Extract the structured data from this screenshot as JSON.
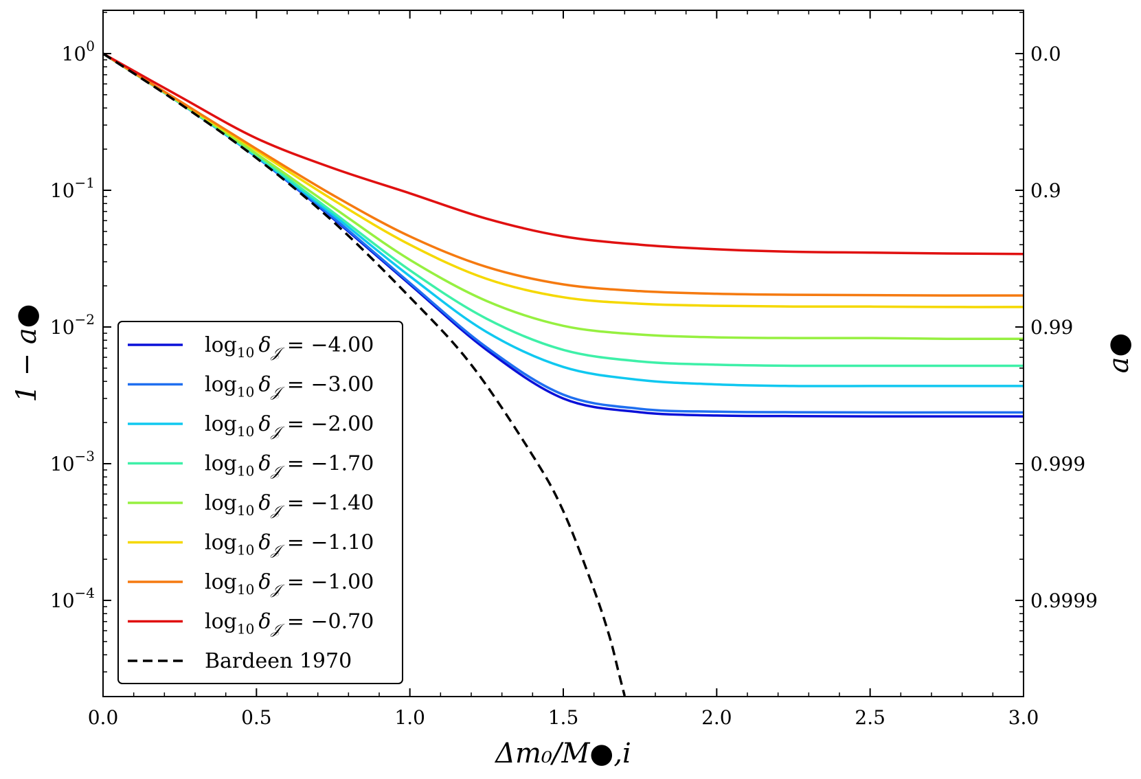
{
  "chart_data": {
    "type": "line",
    "title": "",
    "xlabel": "Δm₀/M●,i",
    "ylabel": "1 − a●",
    "y2label": "a●",
    "xlim": [
      0.0,
      3.0
    ],
    "ylim": [
      2e-05,
      2.0
    ],
    "yscale": "log",
    "grid": false,
    "legend_position": "lower-left",
    "x_ticks": [
      "0.0",
      "0.5",
      "1.0",
      "1.5",
      "2.0",
      "2.5",
      "3.0"
    ],
    "x_tick_values": [
      0.0,
      0.5,
      1.0,
      1.5,
      2.0,
      2.5,
      3.0
    ],
    "y_ticks": [
      {
        "value": 1,
        "base": "10",
        "exp": "0"
      },
      {
        "value": 0.1,
        "base": "10",
        "exp": "−1"
      },
      {
        "value": 0.01,
        "base": "10",
        "exp": "−2"
      },
      {
        "value": 0.001,
        "base": "10",
        "exp": "−3"
      },
      {
        "value": 0.0001,
        "base": "10",
        "exp": "−4"
      }
    ],
    "y2_ticks": [
      {
        "value": 1,
        "label": "0.0"
      },
      {
        "value": 0.1,
        "label": "0.9"
      },
      {
        "value": 0.01,
        "label": "0.99"
      },
      {
        "value": 0.001,
        "label": "0.999"
      },
      {
        "value": 0.0001,
        "label": "0.9999"
      }
    ],
    "x": [
      0.0,
      0.25,
      0.5,
      0.75,
      1.0,
      1.25,
      1.5,
      1.75,
      2.0,
      2.25,
      2.5,
      2.75,
      3.0
    ],
    "series": [
      {
        "name": "log₁₀ δ𝒥 = −4.00",
        "prefix": "log",
        "sub": "10",
        "delta": "δ",
        "deltasub": "𝒥",
        "rhs": " = −4.00",
        "color": "#0a10d8",
        "values": [
          1.0,
          0.435,
          0.175,
          0.062,
          0.0205,
          0.0068,
          0.003,
          0.00238,
          0.00225,
          0.00223,
          0.00222,
          0.00222,
          0.00222
        ]
      },
      {
        "name": "log₁₀ δ𝒥 = −3.00",
        "prefix": "log",
        "sub": "10",
        "delta": "δ",
        "deltasub": "𝒥",
        "rhs": " = −3.00",
        "color": "#1f6ff0",
        "values": [
          1.0,
          0.435,
          0.175,
          0.063,
          0.021,
          0.0071,
          0.0032,
          0.00252,
          0.0024,
          0.00238,
          0.00237,
          0.00237,
          0.00237
        ]
      },
      {
        "name": "log₁₀ δ𝒥 = −2.00",
        "prefix": "log",
        "sub": "10",
        "delta": "δ",
        "deltasub": "𝒥",
        "rhs": " = −2.00",
        "color": "#10c8f0",
        "values": [
          1.0,
          0.436,
          0.177,
          0.066,
          0.0235,
          0.0092,
          0.0051,
          0.0041,
          0.0038,
          0.0037,
          0.0037,
          0.0037,
          0.0037
        ]
      },
      {
        "name": "log₁₀ δ𝒥 = −1.70",
        "prefix": "log",
        "sub": "10",
        "delta": "δ",
        "deltasub": "𝒥",
        "rhs": " = −1.70",
        "color": "#3ef0a8",
        "values": [
          1.0,
          0.437,
          0.18,
          0.069,
          0.026,
          0.0115,
          0.0068,
          0.0056,
          0.0053,
          0.0052,
          0.0052,
          0.0052,
          0.0052
        ]
      },
      {
        "name": "log₁₀ δ𝒥 = −1.40",
        "prefix": "log",
        "sub": "10",
        "delta": "δ",
        "deltasub": "𝒥",
        "rhs": " = −1.40",
        "color": "#96f040",
        "values": [
          1.0,
          0.44,
          0.185,
          0.075,
          0.031,
          0.0155,
          0.0102,
          0.0088,
          0.0084,
          0.0083,
          0.0083,
          0.0082,
          0.0082
        ]
      },
      {
        "name": "log₁₀ δ𝒥 = −1.10",
        "prefix": "log",
        "sub": "10",
        "delta": "δ",
        "deltasub": "𝒥",
        "rhs": " = −1.10",
        "color": "#f5d800",
        "values": [
          1.0,
          0.446,
          0.195,
          0.085,
          0.04,
          0.0225,
          0.0165,
          0.0148,
          0.0143,
          0.0141,
          0.0141,
          0.014,
          0.014
        ]
      },
      {
        "name": "log₁₀ δ𝒥 = −1.00",
        "prefix": "log",
        "sub": "10",
        "delta": "δ",
        "deltasub": "𝒥",
        "rhs": " = −1.00",
        "color": "#f57a10",
        "values": [
          1.0,
          0.449,
          0.201,
          0.092,
          0.046,
          0.0275,
          0.0205,
          0.0183,
          0.0175,
          0.0172,
          0.0171,
          0.017,
          0.017
        ]
      },
      {
        "name": "log₁₀ δ𝒥 = −0.70",
        "prefix": "log",
        "sub": "10",
        "delta": "δ",
        "deltasub": "𝒥",
        "rhs": " = −0.70",
        "color": "#e01010",
        "values": [
          1.0,
          0.485,
          0.24,
          0.145,
          0.095,
          0.062,
          0.046,
          0.04,
          0.037,
          0.0355,
          0.035,
          0.0345,
          0.0342
        ]
      }
    ],
    "reference": {
      "name": "Bardeen 1970",
      "color": "#000000",
      "style": "dashed",
      "x": [
        0.0,
        0.25,
        0.5,
        0.75,
        1.0,
        1.2,
        1.4,
        1.5,
        1.6,
        1.65,
        1.68,
        1.7
      ],
      "values": [
        1.0,
        0.43,
        0.172,
        0.059,
        0.0165,
        0.0053,
        0.00115,
        0.00045,
        0.00012,
        5.5e-05,
        3e-05,
        2e-05
      ]
    }
  }
}
